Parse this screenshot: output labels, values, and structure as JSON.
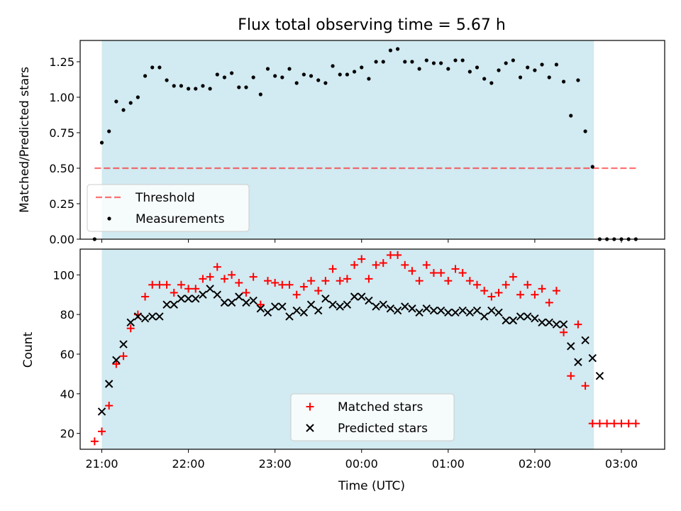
{
  "colors": {
    "shade": "#add8e6",
    "threshold": "#ff0000",
    "measurement": "#000000",
    "matched": "#ff0000",
    "predicted": "#000000"
  },
  "chart_data": [
    {
      "type": "scatter",
      "title": "Flux total observing time = 5.67 h",
      "xlabel": "",
      "ylabel": "Matched/Predicted stars",
      "ylim": [
        0,
        1.4
      ],
      "xlim": [
        "20:45",
        "03:30"
      ],
      "yticks": [
        "0.00",
        "0.25",
        "0.50",
        "0.75",
        "1.00",
        "1.25"
      ],
      "observing_window": [
        "21:00",
        "02:41"
      ],
      "threshold": {
        "name": "Threshold",
        "y": 0.5,
        "x_range": [
          "20:55",
          "03:10"
        ],
        "style": "dashed"
      },
      "legend": {
        "placement": "lower-left",
        "entries": [
          "Threshold",
          "Measurements"
        ]
      },
      "series": [
        {
          "name": "Measurements",
          "marker": "dot",
          "points": [
            [
              "20:55",
              0.0
            ],
            [
              "21:00",
              0.68
            ],
            [
              "21:05",
              0.76
            ],
            [
              "21:10",
              0.97
            ],
            [
              "21:15",
              0.91
            ],
            [
              "21:20",
              0.96
            ],
            [
              "21:25",
              1.0
            ],
            [
              "21:30",
              1.15
            ],
            [
              "21:35",
              1.21
            ],
            [
              "21:40",
              1.21
            ],
            [
              "21:45",
              1.12
            ],
            [
              "21:50",
              1.08
            ],
            [
              "21:55",
              1.08
            ],
            [
              "22:00",
              1.06
            ],
            [
              "22:05",
              1.06
            ],
            [
              "22:10",
              1.08
            ],
            [
              "22:15",
              1.06
            ],
            [
              "22:20",
              1.16
            ],
            [
              "22:25",
              1.14
            ],
            [
              "22:30",
              1.17
            ],
            [
              "22:35",
              1.07
            ],
            [
              "22:40",
              1.07
            ],
            [
              "22:45",
              1.14
            ],
            [
              "22:50",
              1.02
            ],
            [
              "22:55",
              1.2
            ],
            [
              "23:00",
              1.15
            ],
            [
              "23:05",
              1.14
            ],
            [
              "23:10",
              1.2
            ],
            [
              "23:15",
              1.1
            ],
            [
              "23:20",
              1.16
            ],
            [
              "23:25",
              1.15
            ],
            [
              "23:30",
              1.12
            ],
            [
              "23:35",
              1.1
            ],
            [
              "23:40",
              1.22
            ],
            [
              "23:45",
              1.16
            ],
            [
              "23:50",
              1.16
            ],
            [
              "23:55",
              1.18
            ],
            [
              "00:00",
              1.21
            ],
            [
              "00:05",
              1.13
            ],
            [
              "00:10",
              1.25
            ],
            [
              "00:15",
              1.25
            ],
            [
              "00:20",
              1.33
            ],
            [
              "00:25",
              1.34
            ],
            [
              "00:30",
              1.25
            ],
            [
              "00:35",
              1.25
            ],
            [
              "00:40",
              1.2
            ],
            [
              "00:45",
              1.26
            ],
            [
              "00:50",
              1.24
            ],
            [
              "00:55",
              1.24
            ],
            [
              "01:00",
              1.2
            ],
            [
              "01:05",
              1.26
            ],
            [
              "01:10",
              1.26
            ],
            [
              "01:15",
              1.18
            ],
            [
              "01:20",
              1.21
            ],
            [
              "01:25",
              1.13
            ],
            [
              "01:30",
              1.1
            ],
            [
              "01:35",
              1.19
            ],
            [
              "01:40",
              1.24
            ],
            [
              "01:45",
              1.26
            ],
            [
              "01:50",
              1.14
            ],
            [
              "01:55",
              1.21
            ],
            [
              "02:00",
              1.19
            ],
            [
              "02:05",
              1.23
            ],
            [
              "02:10",
              1.14
            ],
            [
              "02:15",
              1.23
            ],
            [
              "02:20",
              1.11
            ],
            [
              "02:25",
              0.87
            ],
            [
              "02:30",
              1.12
            ],
            [
              "02:35",
              0.76
            ],
            [
              "02:40",
              0.51
            ],
            [
              "02:45",
              0.0
            ],
            [
              "02:50",
              0.0
            ],
            [
              "02:55",
              0.0
            ],
            [
              "03:00",
              0.0
            ],
            [
              "03:05",
              0.0
            ],
            [
              "03:10",
              0.0
            ]
          ]
        }
      ]
    },
    {
      "type": "scatter",
      "title": "",
      "xlabel": "Time (UTC)",
      "ylabel": "Count",
      "ylim": [
        12,
        113
      ],
      "xlim": [
        "20:45",
        "03:30"
      ],
      "yticks": [
        "20",
        "40",
        "60",
        "80",
        "100"
      ],
      "xticks": [
        "21:00",
        "22:00",
        "23:00",
        "00:00",
        "01:00",
        "02:00",
        "03:00"
      ],
      "observing_window": [
        "21:00",
        "02:41"
      ],
      "legend": {
        "placement": "lower-center",
        "entries": [
          "Matched stars",
          "Predicted stars"
        ]
      },
      "series": [
        {
          "name": "Matched stars",
          "marker": "plus",
          "points": [
            [
              "20:55",
              16
            ],
            [
              "21:00",
              21
            ],
            [
              "21:05",
              34
            ],
            [
              "21:10",
              55
            ],
            [
              "21:15",
              59
            ],
            [
              "21:20",
              73
            ],
            [
              "21:25",
              80
            ],
            [
              "21:30",
              89
            ],
            [
              "21:35",
              95
            ],
            [
              "21:40",
              95
            ],
            [
              "21:45",
              95
            ],
            [
              "21:50",
              91
            ],
            [
              "21:55",
              95
            ],
            [
              "22:00",
              93
            ],
            [
              "22:05",
              93
            ],
            [
              "22:10",
              98
            ],
            [
              "22:15",
              99
            ],
            [
              "22:20",
              104
            ],
            [
              "22:25",
              98
            ],
            [
              "22:30",
              100
            ],
            [
              "22:35",
              96
            ],
            [
              "22:40",
              91
            ],
            [
              "22:45",
              99
            ],
            [
              "22:50",
              85
            ],
            [
              "22:55",
              97
            ],
            [
              "23:00",
              96
            ],
            [
              "23:05",
              95
            ],
            [
              "23:10",
              95
            ],
            [
              "23:15",
              90
            ],
            [
              "23:20",
              94
            ],
            [
              "23:25",
              97
            ],
            [
              "23:30",
              92
            ],
            [
              "23:35",
              97
            ],
            [
              "23:40",
              103
            ],
            [
              "23:45",
              97
            ],
            [
              "23:50",
              98
            ],
            [
              "23:55",
              105
            ],
            [
              "00:00",
              108
            ],
            [
              "00:05",
              98
            ],
            [
              "00:10",
              105
            ],
            [
              "00:15",
              106
            ],
            [
              "00:20",
              110
            ],
            [
              "00:25",
              110
            ],
            [
              "00:30",
              105
            ],
            [
              "00:35",
              102
            ],
            [
              "00:40",
              97
            ],
            [
              "00:45",
              105
            ],
            [
              "00:50",
              101
            ],
            [
              "00:55",
              101
            ],
            [
              "01:00",
              97
            ],
            [
              "01:05",
              103
            ],
            [
              "01:10",
              101
            ],
            [
              "01:15",
              97
            ],
            [
              "01:20",
              95
            ],
            [
              "01:25",
              92
            ],
            [
              "01:30",
              89
            ],
            [
              "01:35",
              91
            ],
            [
              "01:40",
              95
            ],
            [
              "01:45",
              99
            ],
            [
              "01:50",
              90
            ],
            [
              "01:55",
              95
            ],
            [
              "02:00",
              90
            ],
            [
              "02:05",
              93
            ],
            [
              "02:10",
              86
            ],
            [
              "02:15",
              92
            ],
            [
              "02:20",
              71
            ],
            [
              "02:25",
              49
            ],
            [
              "02:30",
              75
            ],
            [
              "02:35",
              44
            ],
            [
              "02:40",
              25
            ],
            [
              "02:45",
              25
            ],
            [
              "02:50",
              25
            ],
            [
              "02:55",
              25
            ],
            [
              "03:00",
              25
            ],
            [
              "03:05",
              25
            ],
            [
              "03:10",
              25
            ]
          ]
        },
        {
          "name": "Predicted stars",
          "marker": "cross",
          "points": [
            [
              "21:00",
              31
            ],
            [
              "21:05",
              45
            ],
            [
              "21:10",
              57
            ],
            [
              "21:15",
              65
            ],
            [
              "21:20",
              76
            ],
            [
              "21:25",
              79
            ],
            [
              "21:30",
              78
            ],
            [
              "21:35",
              79
            ],
            [
              "21:40",
              79
            ],
            [
              "21:45",
              85
            ],
            [
              "21:50",
              85
            ],
            [
              "21:55",
              88
            ],
            [
              "22:00",
              88
            ],
            [
              "22:05",
              88
            ],
            [
              "22:10",
              90
            ],
            [
              "22:15",
              93
            ],
            [
              "22:20",
              90
            ],
            [
              "22:25",
              86
            ],
            [
              "22:30",
              86
            ],
            [
              "22:35",
              89
            ],
            [
              "22:40",
              86
            ],
            [
              "22:45",
              87
            ],
            [
              "22:50",
              83
            ],
            [
              "22:55",
              81
            ],
            [
              "23:00",
              84
            ],
            [
              "23:05",
              84
            ],
            [
              "23:10",
              79
            ],
            [
              "23:15",
              82
            ],
            [
              "23:20",
              81
            ],
            [
              "23:25",
              85
            ],
            [
              "23:30",
              82
            ],
            [
              "23:35",
              88
            ],
            [
              "23:40",
              85
            ],
            [
              "23:45",
              84
            ],
            [
              "23:50",
              85
            ],
            [
              "23:55",
              89
            ],
            [
              "00:00",
              89
            ],
            [
              "00:05",
              87
            ],
            [
              "00:10",
              84
            ],
            [
              "00:15",
              85
            ],
            [
              "00:20",
              83
            ],
            [
              "00:25",
              82
            ],
            [
              "00:30",
              84
            ],
            [
              "00:35",
              83
            ],
            [
              "00:40",
              81
            ],
            [
              "00:45",
              83
            ],
            [
              "00:50",
              82
            ],
            [
              "00:55",
              82
            ],
            [
              "01:00",
              81
            ],
            [
              "01:05",
              81
            ],
            [
              "01:10",
              82
            ],
            [
              "01:15",
              81
            ],
            [
              "01:20",
              82
            ],
            [
              "01:25",
              79
            ],
            [
              "01:30",
              82
            ],
            [
              "01:35",
              81
            ],
            [
              "01:40",
              77
            ],
            [
              "01:45",
              77
            ],
            [
              "01:50",
              79
            ],
            [
              "01:55",
              79
            ],
            [
              "02:00",
              78
            ],
            [
              "02:05",
              76
            ],
            [
              "02:10",
              76
            ],
            [
              "02:15",
              75
            ],
            [
              "02:20",
              75
            ],
            [
              "02:25",
              64
            ],
            [
              "02:30",
              56
            ],
            [
              "02:35",
              67
            ],
            [
              "02:40",
              58
            ],
            [
              "02:45",
              49
            ]
          ]
        }
      ]
    }
  ]
}
